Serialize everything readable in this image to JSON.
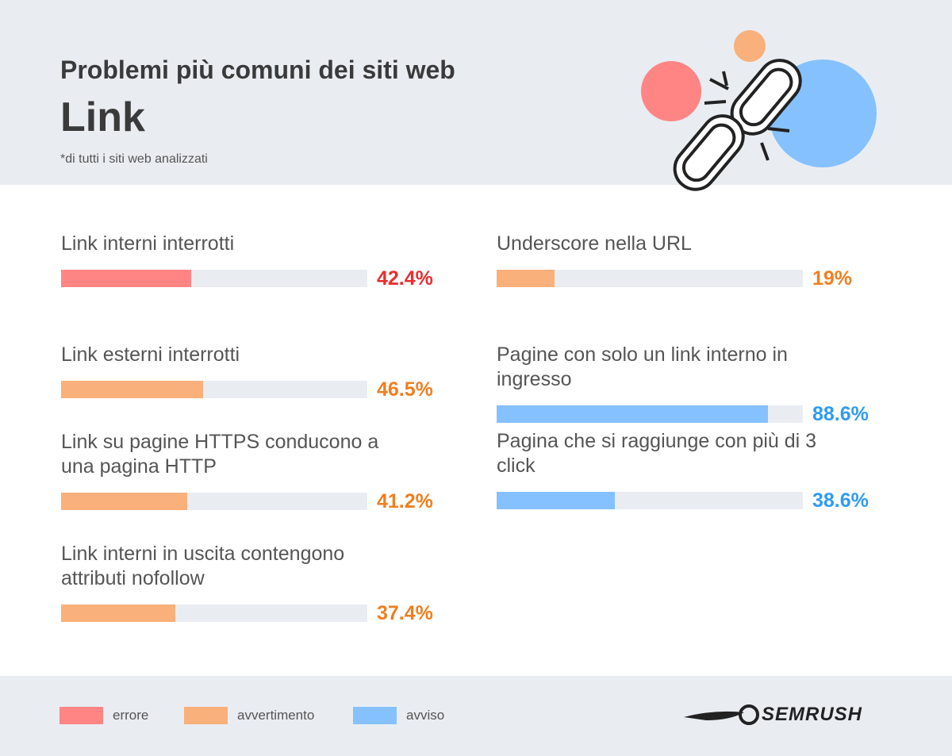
{
  "header": {
    "title": "Problemi più comuni dei siti web",
    "subtitle": "Link",
    "note": "*di tutti i siti web analizzati"
  },
  "chart_data": [
    {
      "type": "bar",
      "categories": [
        "Link interni interrotti",
        "Link esterni interrotti",
        "Link su pagine HTTPS conducono a una pagina HTTP",
        "Link interni in uscita contengono attributi nofollow"
      ],
      "values": [
        42.4,
        46.5,
        41.2,
        37.4
      ],
      "value_labels": [
        "42.4%",
        "46.5%",
        "41.2%",
        "37.4%"
      ],
      "colors": [
        "#ff8585",
        "#f9b07a",
        "#f9b07a",
        "#f9b07a"
      ],
      "label_colors": [
        "#ec2d2d",
        "#f07f1f",
        "#f07f1f",
        "#f07f1f"
      ],
      "xlim": [
        0,
        100
      ]
    },
    {
      "type": "bar",
      "categories": [
        "Underscore nella URL",
        "Pagine con solo un link interno in ingresso",
        "Pagina che si raggiunge con più di 3 click"
      ],
      "values": [
        19,
        88.6,
        38.6
      ],
      "value_labels": [
        "19%",
        "88.6%",
        "38.6%"
      ],
      "colors": [
        "#f9b07a",
        "#85c1ff",
        "#85c1ff"
      ],
      "label_colors": [
        "#f07f1f",
        "#2f9bf0",
        "#2f9bf0"
      ],
      "xlim": [
        0,
        100
      ]
    }
  ],
  "legend": [
    {
      "name": "errore",
      "color": "#ff8585"
    },
    {
      "name": "avvertimento",
      "color": "#f9b07a"
    },
    {
      "name": "avviso",
      "color": "#85c1ff"
    }
  ],
  "brand": "SEMRUSH"
}
